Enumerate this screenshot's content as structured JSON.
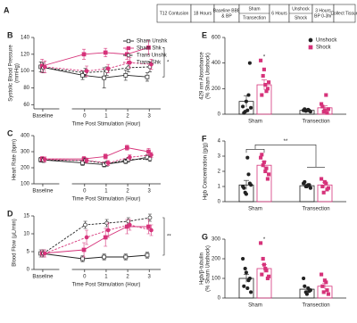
{
  "panel_a": {
    "label": "A",
    "steps": [
      {
        "text": [
          "T12 Contusion"
        ]
      },
      {
        "text": [
          "18 Hours"
        ]
      },
      {
        "text": [
          "Baseline BBB",
          "& BP"
        ]
      },
      {
        "options": [
          "Sham",
          "Transection"
        ]
      },
      {
        "text": [
          "6 Hours"
        ]
      },
      {
        "options": [
          "Unshock",
          "Shock"
        ]
      },
      {
        "text": [
          "3 Hours",
          "BP 0-3hr"
        ]
      },
      {
        "text": [
          "Collect Tissue"
        ]
      }
    ]
  },
  "chart_data": [
    {
      "type": "line",
      "panel": "B",
      "ylabel": [
        "Systolic Blood Pressure",
        "(mmHg)"
      ],
      "xlabel": "Time Post Stimulation (Hour)",
      "categories": [
        "Baseline",
        "0",
        "1",
        "2",
        "3"
      ],
      "ylim": [
        55,
        140
      ],
      "yticks": [
        60,
        80,
        100,
        120,
        140
      ],
      "legend": "upper right",
      "annotation": "*",
      "series": [
        {
          "name": "Sham Unshk",
          "color": "#222222",
          "marker": "square",
          "filled": false,
          "dashed": false,
          "values": [
            105,
            95,
            92,
            95,
            93
          ],
          "errors": [
            6,
            5,
            12,
            6,
            5
          ]
        },
        {
          "name": "Sham Shk",
          "color": "#d6337a",
          "marker": "square",
          "filled": true,
          "dashed": false,
          "values": [
            106,
            120,
            122,
            120,
            128
          ],
          "errors": [
            8,
            6,
            5,
            6,
            8
          ]
        },
        {
          "name": "Trans Unshk",
          "color": "#222222",
          "marker": "circle",
          "filled": false,
          "dashed": true,
          "values": [
            104,
            98,
            100,
            104,
            105
          ],
          "errors": [
            6,
            5,
            5,
            5,
            6
          ]
        },
        {
          "name": "Trans Shk",
          "color": "#d6337a",
          "marker": "circle",
          "filled": true,
          "dashed": true,
          "values": [
            105,
            100,
            103,
            110,
            108
          ],
          "errors": [
            7,
            6,
            5,
            6,
            6
          ]
        }
      ]
    },
    {
      "type": "line",
      "panel": "C",
      "ylabel": [
        "Heart Rate (bpm)"
      ],
      "xlabel": "Time Post Stimulation (Hour)",
      "categories": [
        "Baseline",
        "0",
        "1",
        "2",
        "3"
      ],
      "ylim": [
        100,
        400
      ],
      "yticks": [
        100,
        200,
        300,
        400
      ],
      "series": [
        {
          "color": "#222222",
          "marker": "square",
          "filled": false,
          "dashed": false,
          "values": [
            250,
            230,
            220,
            240,
            265
          ],
          "errors": [
            15,
            15,
            15,
            15,
            15
          ]
        },
        {
          "color": "#d6337a",
          "marker": "square",
          "filled": true,
          "dashed": false,
          "values": [
            255,
            255,
            270,
            325,
            300
          ],
          "errors": [
            15,
            15,
            15,
            15,
            20
          ]
        },
        {
          "color": "#222222",
          "marker": "circle",
          "filled": false,
          "dashed": true,
          "values": [
            248,
            245,
            225,
            250,
            255
          ],
          "errors": [
            15,
            15,
            15,
            15,
            15
          ]
        },
        {
          "color": "#d6337a",
          "marker": "circle",
          "filled": true,
          "dashed": true,
          "values": [
            252,
            245,
            230,
            265,
            280
          ],
          "errors": [
            15,
            15,
            15,
            15,
            15
          ]
        }
      ]
    },
    {
      "type": "line",
      "panel": "D",
      "ylabel": [
        "Blood Flow (μL/min)"
      ],
      "xlabel": "Time Post Stimulation (Hour)",
      "categories": [
        "Baseline",
        "0",
        "1",
        "2",
        "3"
      ],
      "ylim": [
        0,
        15
      ],
      "yticks": [
        0,
        5,
        10,
        15
      ],
      "annotation": "**",
      "series": [
        {
          "color": "#222222",
          "marker": "square",
          "filled": false,
          "dashed": false,
          "values": [
            4.5,
            3,
            3.5,
            3.5,
            4
          ],
          "errors": [
            1,
            0.8,
            0.8,
            0.8,
            0.8
          ]
        },
        {
          "color": "#d6337a",
          "marker": "square",
          "filled": true,
          "dashed": false,
          "values": [
            4.5,
            5.5,
            9,
            12,
            12
          ],
          "errors": [
            1,
            2,
            2.5,
            2,
            2
          ]
        },
        {
          "color": "#222222",
          "marker": "circle",
          "filled": false,
          "dashed": true,
          "values": [
            4.5,
            12.5,
            13,
            13.5,
            14.5
          ],
          "errors": [
            1,
            1,
            1,
            1,
            1
          ]
        },
        {
          "color": "#d6337a",
          "marker": "circle",
          "filled": true,
          "dashed": true,
          "values": [
            4.5,
            9,
            11,
            12.5,
            11
          ],
          "errors": [
            1,
            2,
            2,
            1.5,
            1.5
          ]
        }
      ]
    },
    {
      "type": "bar",
      "panel": "E",
      "ylabel": [
        "429 nm Absorbance",
        "(% Sham Unshock)"
      ],
      "categories": [
        "Sham",
        "Transection"
      ],
      "ylim": [
        0,
        600
      ],
      "yticks": [
        0,
        200,
        400,
        600
      ],
      "legend": "upper right",
      "annotation": "*",
      "series": [
        {
          "name": "Unshock",
          "color": "#222222",
          "marker": "circle",
          "values": [
            100,
            30
          ],
          "errors": [
            45,
            5
          ],
          "points": [
            [
              60,
              20,
              30,
              400,
              10,
              100,
              150,
              50
            ],
            [
              30,
              25,
              35,
              20,
              40,
              30,
              28
            ]
          ]
        },
        {
          "name": "Shock",
          "color": "#d6337a",
          "marker": "square",
          "values": [
            230,
            50
          ],
          "errors": [
            40,
            15
          ],
          "points": [
            [
              420,
              300,
              230,
              200,
              150,
              350,
              180,
              250
            ],
            [
              80,
              20,
              150,
              40,
              60,
              30,
              10
            ]
          ]
        }
      ]
    },
    {
      "type": "bar",
      "panel": "F",
      "ylabel": [
        "Hgb Concentration (g/g)"
      ],
      "categories": [
        "Sham",
        "Transection"
      ],
      "ylim": [
        0,
        4
      ],
      "yticks": [
        0,
        1,
        2,
        3,
        4
      ],
      "annotation": "**",
      "bracket": true,
      "series": [
        {
          "color": "#222222",
          "marker": "circle",
          "values": [
            1.1,
            1.05
          ],
          "errors": [
            0.3,
            0.1
          ],
          "points": [
            [
              1.0,
              0.6,
              2.9,
              1.2,
              0.9,
              0.5,
              1.8,
              1.1
            ],
            [
              1.2,
              1.0,
              1.1,
              0.9,
              1.3,
              1.0,
              1.1
            ]
          ]
        },
        {
          "color": "#d6337a",
          "marker": "square",
          "values": [
            2.4,
            1.1
          ],
          "errors": [
            0.25,
            0.15
          ],
          "points": [
            [
              2.9,
              2.4,
              2.0,
              1.5,
              3.1,
              2.6,
              2.2,
              1.8
            ],
            [
              1.5,
              0.6,
              1.2,
              0.9,
              1.0,
              1.3,
              0.8
            ]
          ]
        }
      ]
    },
    {
      "type": "bar",
      "panel": "G",
      "ylabel": [
        "Hgb/β-tubulin",
        "(% Sham Unshock)"
      ],
      "categories": [
        "Sham",
        "Transection"
      ],
      "ylim": [
        0,
        300
      ],
      "yticks": [
        0,
        100,
        200,
        300
      ],
      "annotation": "*",
      "series": [
        {
          "color": "#222222",
          "marker": "circle",
          "values": [
            100,
            45
          ],
          "errors": [
            20,
            10
          ],
          "points": [
            [
              200,
              150,
              50,
              100,
              60,
              130,
              90,
              30
            ],
            [
              100,
              30,
              50,
              40,
              60,
              20,
              35
            ]
          ]
        },
        {
          "color": "#d6337a",
          "marker": "square",
          "values": [
            150,
            60
          ],
          "errors": [
            20,
            15
          ],
          "points": [
            [
              280,
              200,
              150,
              100,
              120,
              170,
              140,
              110
            ],
            [
              120,
              30,
              80,
              20,
              60,
              90,
              40
            ]
          ]
        }
      ]
    }
  ]
}
